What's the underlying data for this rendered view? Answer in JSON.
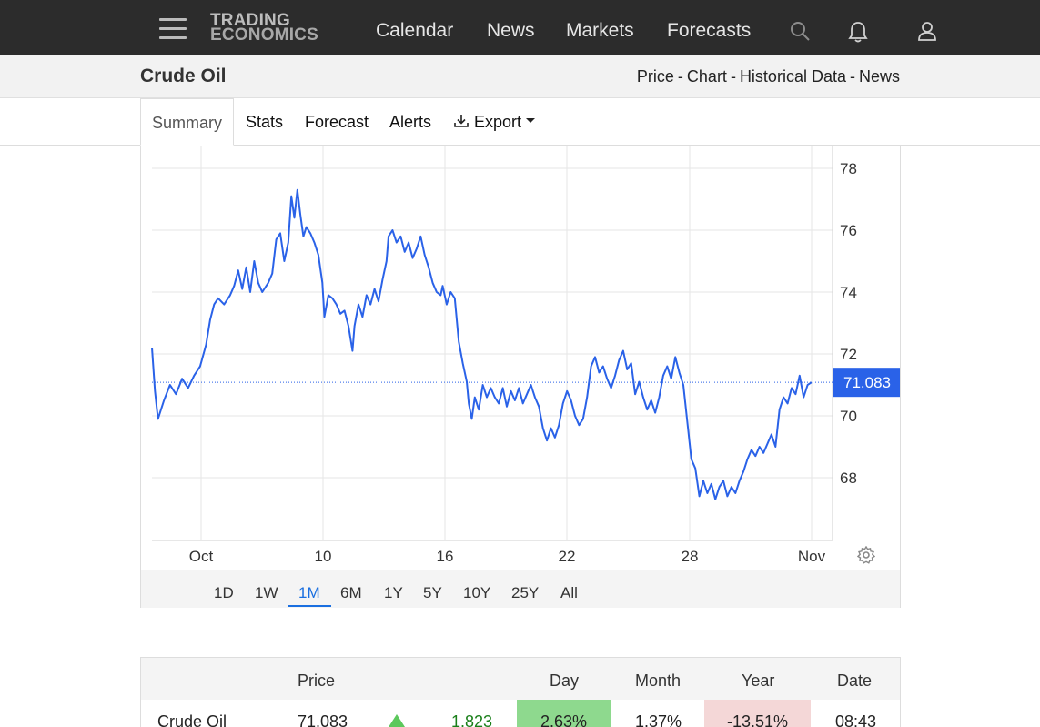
{
  "nav": {
    "logo_line1": "TRADING",
    "logo_line2": "ECONOMICS",
    "links": [
      "Calendar",
      "News",
      "Markets",
      "Forecasts"
    ]
  },
  "header": {
    "title": "Crude Oil",
    "links": [
      "Price",
      "Chart",
      "Historical Data",
      "News"
    ],
    "separator": "-"
  },
  "tabs": {
    "summary": "Summary",
    "stats": "Stats",
    "forecast": "Forecast",
    "alerts": "Alerts",
    "export": "Export"
  },
  "ranges": [
    "1D",
    "1W",
    "1M",
    "6M",
    "1Y",
    "5Y",
    "10Y",
    "25Y",
    "All"
  ],
  "active_range": "1M",
  "colors": {
    "line": "#2a62e8",
    "accent": "#1a6fe0",
    "up": "#1a7f1a",
    "day_bg": "#8ed98e",
    "year_bg": "#f4d7d7"
  },
  "chart_data": {
    "type": "line",
    "ylim": [
      66,
      78.5
    ],
    "y_ticks": [
      "78",
      "76",
      "74",
      "72",
      "70",
      "68"
    ],
    "x_ticks": [
      "Oct",
      "10",
      "16",
      "22",
      "28",
      "Nov"
    ],
    "last_value": "71.083",
    "series": [
      {
        "values": [
          [
            0,
            72.2
          ],
          [
            0.15,
            70.8
          ],
          [
            0.3,
            69.9
          ],
          [
            0.6,
            70.5
          ],
          [
            0.9,
            71.0
          ],
          [
            1.2,
            70.7
          ],
          [
            1.5,
            71.2
          ],
          [
            1.8,
            70.9
          ],
          [
            2.1,
            71.3
          ],
          [
            2.4,
            71.6
          ],
          [
            2.7,
            72.3
          ],
          [
            2.9,
            73.1
          ],
          [
            3.1,
            73.6
          ],
          [
            3.3,
            73.8
          ],
          [
            3.6,
            73.6
          ],
          [
            3.9,
            73.9
          ],
          [
            4.1,
            74.2
          ],
          [
            4.3,
            74.7
          ],
          [
            4.5,
            74.1
          ],
          [
            4.7,
            74.8
          ],
          [
            4.9,
            74.0
          ],
          [
            5.1,
            75.0
          ],
          [
            5.3,
            74.3
          ],
          [
            5.5,
            74.0
          ],
          [
            5.8,
            74.3
          ],
          [
            6.0,
            74.6
          ],
          [
            6.2,
            75.7
          ],
          [
            6.4,
            75.9
          ],
          [
            6.6,
            75.0
          ],
          [
            6.8,
            75.6
          ],
          [
            6.95,
            77.1
          ],
          [
            7.1,
            76.4
          ],
          [
            7.25,
            77.3
          ],
          [
            7.4,
            76.5
          ],
          [
            7.55,
            75.8
          ],
          [
            7.7,
            76.1
          ],
          [
            7.9,
            75.9
          ],
          [
            8.1,
            75.6
          ],
          [
            8.3,
            75.2
          ],
          [
            8.5,
            74.3
          ],
          [
            8.6,
            73.2
          ],
          [
            8.8,
            73.9
          ],
          [
            9.0,
            73.8
          ],
          [
            9.2,
            73.6
          ],
          [
            9.4,
            73.3
          ],
          [
            9.6,
            73.4
          ],
          [
            9.8,
            72.9
          ],
          [
            10.0,
            72.1
          ],
          [
            10.1,
            72.9
          ],
          [
            10.3,
            73.6
          ],
          [
            10.5,
            73.2
          ],
          [
            10.7,
            73.9
          ],
          [
            10.9,
            73.6
          ],
          [
            11.1,
            74.1
          ],
          [
            11.3,
            73.7
          ],
          [
            11.5,
            74.4
          ],
          [
            11.7,
            75.0
          ],
          [
            11.8,
            75.8
          ],
          [
            12.0,
            76.0
          ],
          [
            12.2,
            75.6
          ],
          [
            12.4,
            75.8
          ],
          [
            12.6,
            75.3
          ],
          [
            12.8,
            75.6
          ],
          [
            13.0,
            75.1
          ],
          [
            13.2,
            75.4
          ],
          [
            13.4,
            75.8
          ],
          [
            13.6,
            75.2
          ],
          [
            13.8,
            74.8
          ],
          [
            14.0,
            74.3
          ],
          [
            14.2,
            74.0
          ],
          [
            14.4,
            73.9
          ],
          [
            14.5,
            74.2
          ],
          [
            14.7,
            73.6
          ],
          [
            14.9,
            74.0
          ],
          [
            15.1,
            73.8
          ],
          [
            15.3,
            72.4
          ],
          [
            15.5,
            71.7
          ],
          [
            15.7,
            71.1
          ],
          [
            15.8,
            70.4
          ],
          [
            15.95,
            69.9
          ],
          [
            16.1,
            70.6
          ],
          [
            16.3,
            70.2
          ],
          [
            16.5,
            71.0
          ],
          [
            16.7,
            70.6
          ],
          [
            16.9,
            70.9
          ],
          [
            17.1,
            70.6
          ],
          [
            17.3,
            70.4
          ],
          [
            17.5,
            70.9
          ],
          [
            17.7,
            70.3
          ],
          [
            17.9,
            70.8
          ],
          [
            18.1,
            70.5
          ],
          [
            18.3,
            70.9
          ],
          [
            18.5,
            70.4
          ],
          [
            18.7,
            70.7
          ],
          [
            18.9,
            71.0
          ],
          [
            19.1,
            70.6
          ],
          [
            19.3,
            70.3
          ],
          [
            19.5,
            69.6
          ],
          [
            19.7,
            69.2
          ],
          [
            19.9,
            69.6
          ],
          [
            20.1,
            69.3
          ],
          [
            20.3,
            69.7
          ],
          [
            20.5,
            70.4
          ],
          [
            20.7,
            70.8
          ],
          [
            20.9,
            70.5
          ],
          [
            21.1,
            70.0
          ],
          [
            21.3,
            69.7
          ],
          [
            21.5,
            69.9
          ],
          [
            21.7,
            70.6
          ],
          [
            21.9,
            71.6
          ],
          [
            22.1,
            71.9
          ],
          [
            22.3,
            71.4
          ],
          [
            22.5,
            71.6
          ],
          [
            22.7,
            71.2
          ],
          [
            22.9,
            70.9
          ],
          [
            23.1,
            71.3
          ],
          [
            23.3,
            71.8
          ],
          [
            23.5,
            72.1
          ],
          [
            23.7,
            71.5
          ],
          [
            23.9,
            71.7
          ],
          [
            24.1,
            70.7
          ],
          [
            24.3,
            71.1
          ],
          [
            24.5,
            70.6
          ],
          [
            24.7,
            70.2
          ],
          [
            24.9,
            70.5
          ],
          [
            25.1,
            70.1
          ],
          [
            25.3,
            70.6
          ],
          [
            25.5,
            71.3
          ],
          [
            25.7,
            71.6
          ],
          [
            25.9,
            71.2
          ],
          [
            26.1,
            71.9
          ],
          [
            26.3,
            71.4
          ],
          [
            26.5,
            71.0
          ],
          [
            26.7,
            69.8
          ],
          [
            26.9,
            68.6
          ],
          [
            27.1,
            68.3
          ],
          [
            27.3,
            67.4
          ],
          [
            27.5,
            67.9
          ],
          [
            27.7,
            67.5
          ],
          [
            27.9,
            67.8
          ],
          [
            28.1,
            67.3
          ],
          [
            28.3,
            67.7
          ],
          [
            28.5,
            67.9
          ],
          [
            28.7,
            67.4
          ],
          [
            28.9,
            67.7
          ],
          [
            29.1,
            67.5
          ],
          [
            29.3,
            67.9
          ],
          [
            29.5,
            68.2
          ],
          [
            29.7,
            68.6
          ],
          [
            29.9,
            68.9
          ],
          [
            30.1,
            68.7
          ],
          [
            30.3,
            69.0
          ],
          [
            30.5,
            68.8
          ],
          [
            30.7,
            69.1
          ],
          [
            30.9,
            69.4
          ],
          [
            31.1,
            69.0
          ],
          [
            31.3,
            70.2
          ],
          [
            31.5,
            70.6
          ],
          [
            31.7,
            70.4
          ],
          [
            31.9,
            70.9
          ],
          [
            32.1,
            70.7
          ],
          [
            32.3,
            71.3
          ],
          [
            32.5,
            70.6
          ],
          [
            32.7,
            71.0
          ],
          [
            32.9,
            71.083
          ]
        ]
      }
    ]
  },
  "table": {
    "headers": [
      "Price",
      "Day",
      "Month",
      "Year",
      "Date"
    ],
    "row": {
      "name": "Crude Oil",
      "price": "71.083",
      "change": "1.823",
      "day": "2.63%",
      "month": "1.37%",
      "year": "-13.51%",
      "date": "08:43"
    }
  }
}
